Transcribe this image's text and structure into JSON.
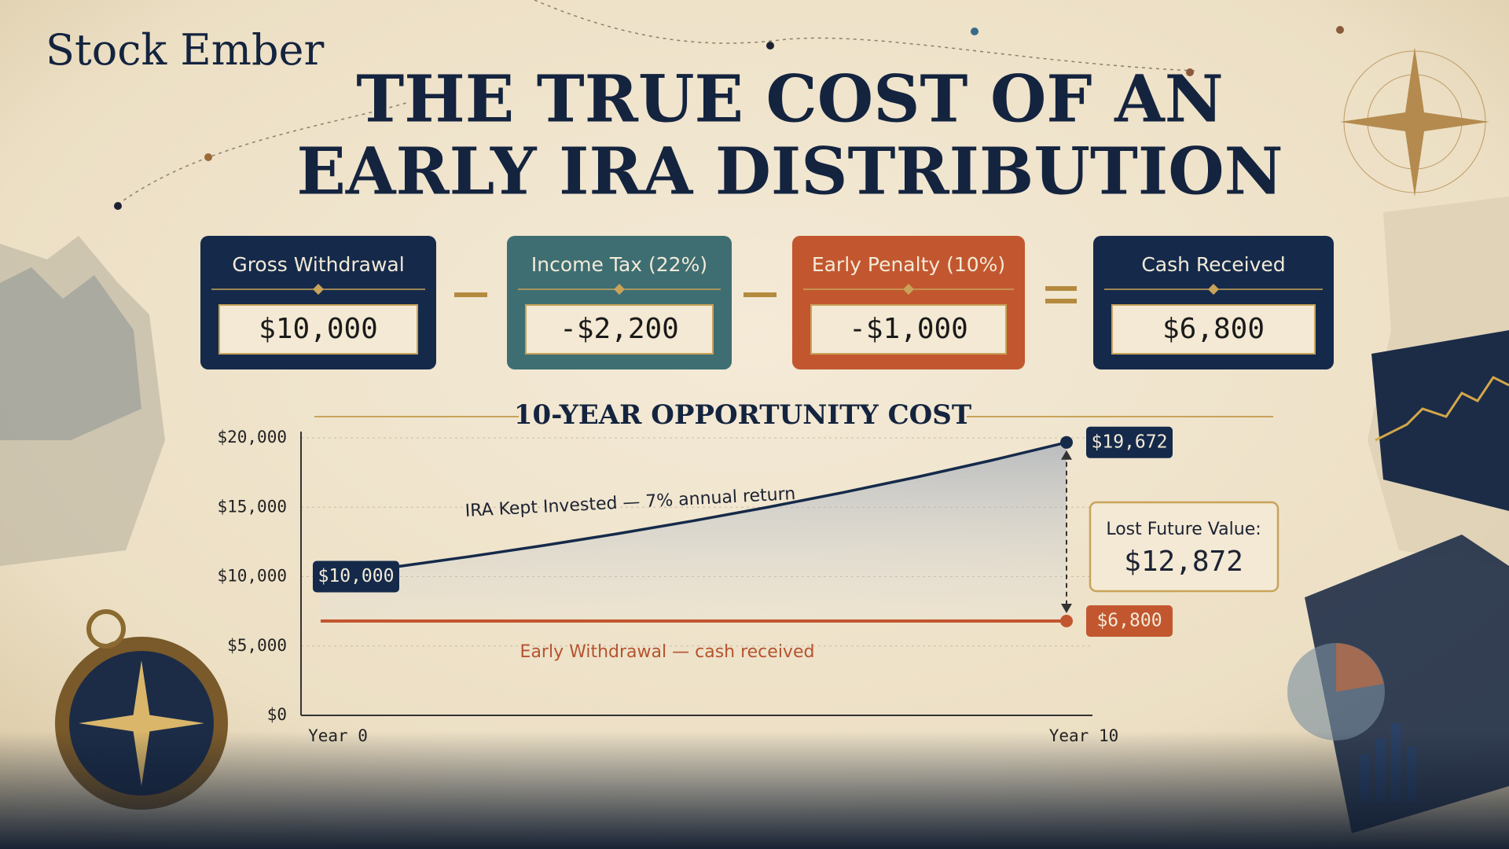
{
  "brand": "Stock Ember",
  "title_lines": [
    "THE TRUE COST OF AN",
    "EARLY IRA DISTRIBUTION"
  ],
  "equation": [
    {
      "label": "Gross Withdrawal",
      "amount": "$10,000",
      "color": "#152a4a"
    },
    {
      "label": "Income Tax (22%)",
      "amount": "-$2,200",
      "color": "#3e6e72"
    },
    {
      "label": "Early Penalty (10%)",
      "amount": "-$1,000",
      "color": "#c2572f"
    },
    {
      "label": "Cash Received",
      "amount": "$6,800",
      "color": "#152a4a"
    }
  ],
  "chart_data": {
    "type": "line",
    "title": "10-YEAR OPPORTUNITY COST",
    "categories": [
      "Year 0",
      null,
      null,
      null,
      null,
      null,
      null,
      null,
      null,
      null,
      "Year 10"
    ],
    "series": [
      {
        "name": "IRA Kept Invested — 7% annual return",
        "color": "#152a4a",
        "values": [
          10000,
          10700,
          11449,
          12250,
          13108,
          14026,
          15007,
          16058,
          17182,
          18385,
          19672
        ],
        "value_labels": [
          "$10,000",
          null,
          null,
          null,
          null,
          null,
          null,
          null,
          null,
          null,
          "$19,672"
        ]
      },
      {
        "name": "Early Withdrawal — cash received",
        "color": "#c2572f",
        "values": [
          6800,
          6800,
          6800,
          6800,
          6800,
          6800,
          6800,
          6800,
          6800,
          6800,
          6800
        ],
        "value_labels": [
          null,
          null,
          null,
          null,
          null,
          null,
          null,
          null,
          null,
          null,
          "$6,800"
        ]
      }
    ],
    "ylim": [
      0,
      20000
    ],
    "yticks": [
      {
        "value": 0,
        "label": "$0"
      },
      {
        "value": 5000,
        "label": "$5,000"
      },
      {
        "value": 10000,
        "label": "$10,000"
      },
      {
        "value": 15000,
        "label": "$15,000"
      },
      {
        "value": 20000,
        "label": "$20,000"
      }
    ],
    "grid": true,
    "annotation": {
      "title": "Lost Future Value:",
      "value": 12872,
      "label": "$12,872"
    }
  }
}
